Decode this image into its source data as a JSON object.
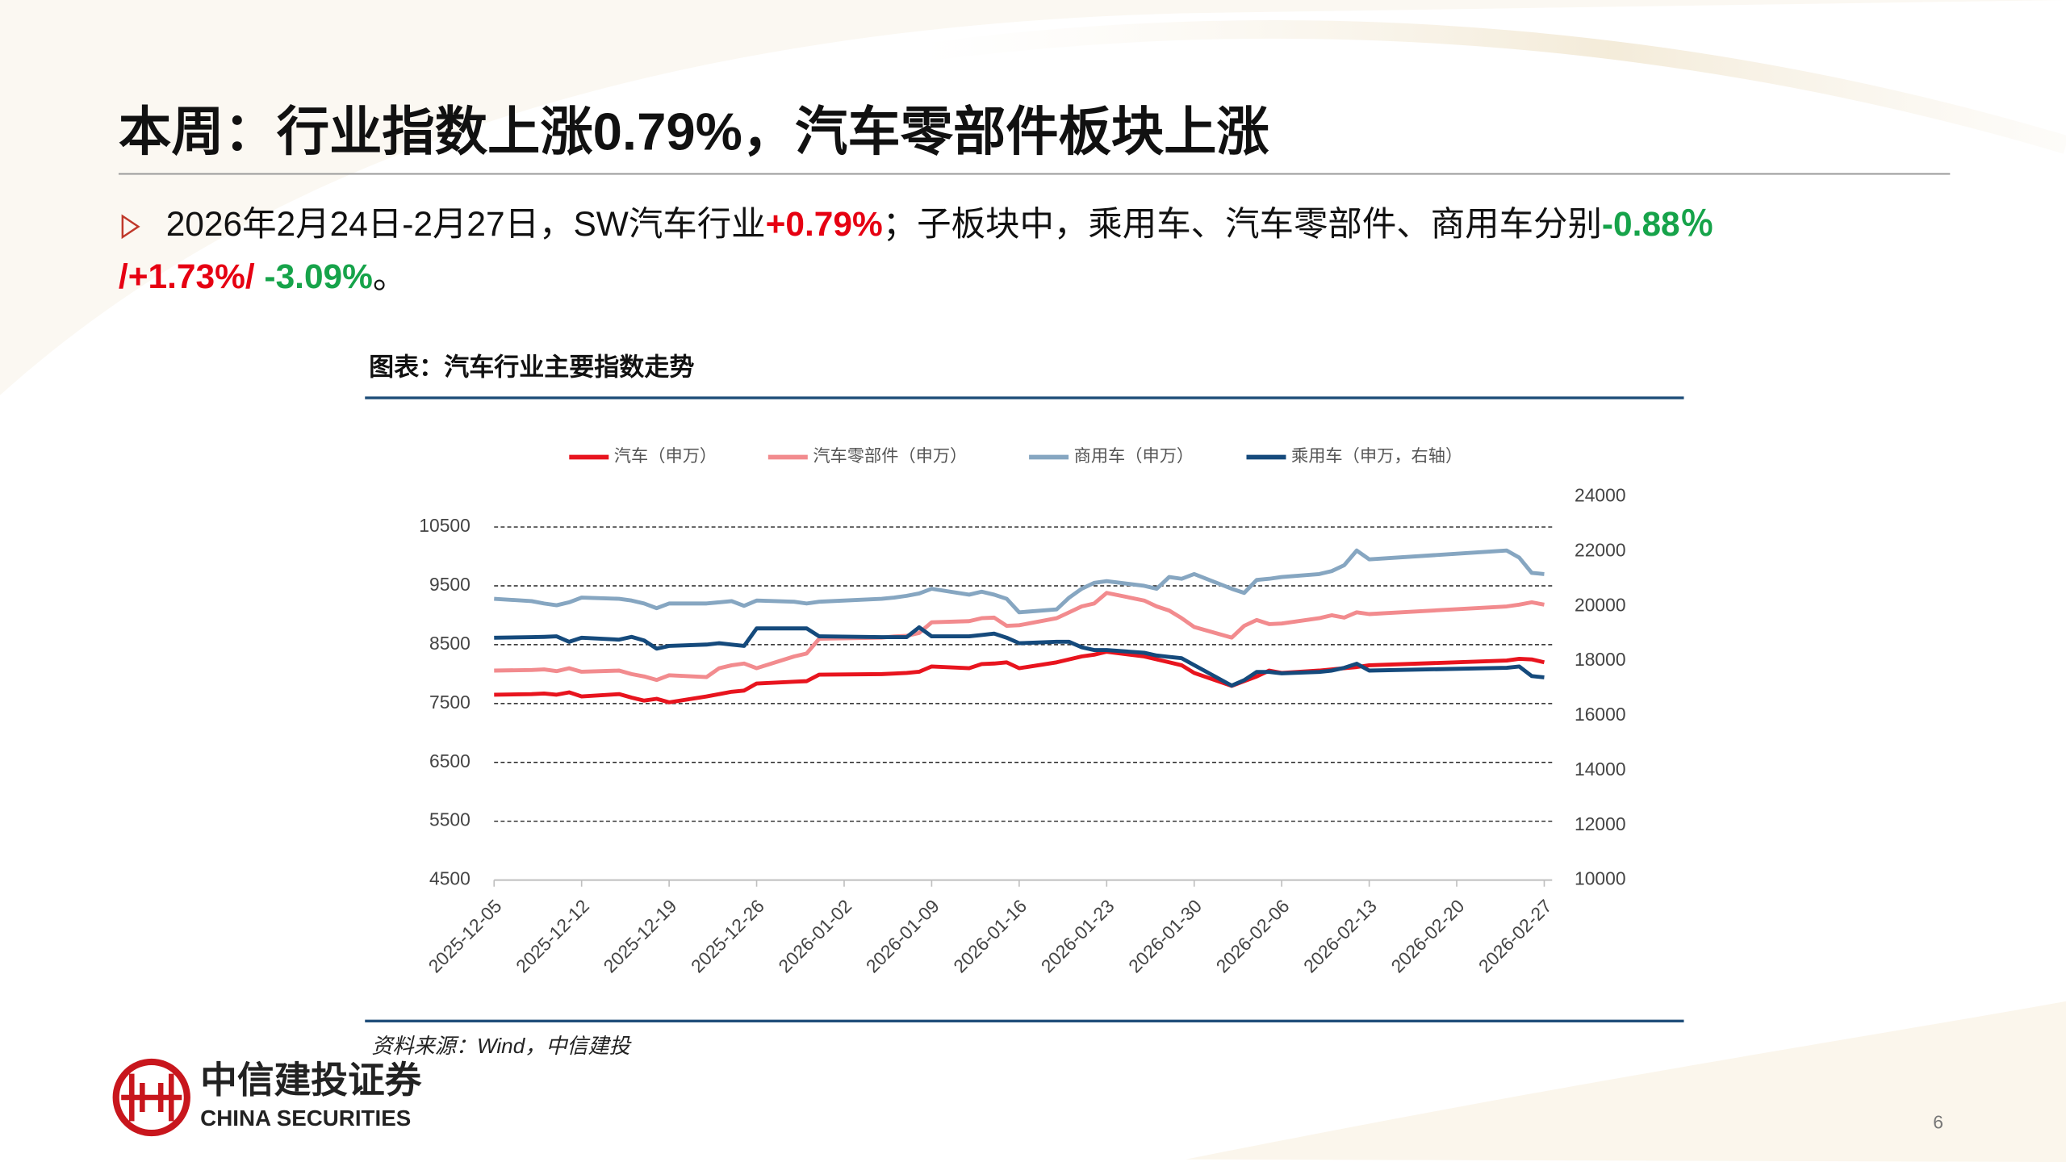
{
  "title": "本周：行业指数上涨0.79%，汽车零部件板块上涨",
  "bullet": {
    "lines": [
      [
        {
          "text": "2026年2月24日-2月27日，SW汽车行业",
          "color": "#111111"
        },
        {
          "text": "+0.79%",
          "color": "#e60012"
        },
        {
          "text": "；子板块中，乘用车、汽车零部件、商用车分别",
          "color": "#111111"
        },
        {
          "text": "-0.88％",
          "color": "#16a34a"
        }
      ],
      [
        {
          "text": "/+1.73%/",
          "color": "#e60012"
        },
        {
          "text": " -3.09%",
          "color": "#16a34a"
        },
        {
          "text": "。",
          "color": "#111111"
        }
      ]
    ]
  },
  "caption": "图表：汽车行业主要指数走势",
  "source": "资料来源：Wind，中信建投",
  "logo": {
    "name": "中信建投证券",
    "english": "CHINA SECURITIES"
  },
  "page_number": "6",
  "chart_data": {
    "type": "line",
    "x": [
      "2025-12-05",
      "2025-12-08",
      "2025-12-09",
      "2025-12-10",
      "2025-12-11",
      "2025-12-12",
      "2025-12-15",
      "2025-12-16",
      "2025-12-17",
      "2025-12-18",
      "2025-12-19",
      "2025-12-22",
      "2025-12-23",
      "2025-12-24",
      "2025-12-25",
      "2025-12-26",
      "2025-12-29",
      "2025-12-30",
      "2025-12-31",
      "2026-01-05",
      "2026-01-06",
      "2026-01-07",
      "2026-01-08",
      "2026-01-09",
      "2026-01-12",
      "2026-01-13",
      "2026-01-14",
      "2026-01-15",
      "2026-01-16",
      "2026-01-19",
      "2026-01-20",
      "2026-01-21",
      "2026-01-22",
      "2026-01-23",
      "2026-01-26",
      "2026-01-27",
      "2026-01-28",
      "2026-01-29",
      "2026-01-30",
      "2026-02-02",
      "2026-02-03",
      "2026-02-04",
      "2026-02-05",
      "2026-02-06",
      "2026-02-09",
      "2026-02-10",
      "2026-02-11",
      "2026-02-12",
      "2026-02-13",
      "2026-02-24",
      "2026-02-25",
      "2026-02-26",
      "2026-02-27"
    ],
    "series": [
      {
        "name": "汽车（申万）",
        "color": "#e8141e",
        "axis": "y",
        "values": [
          7650,
          7660,
          7670,
          7650,
          7690,
          7620,
          7660,
          7600,
          7550,
          7580,
          7520,
          7620,
          7660,
          7700,
          7720,
          7840,
          7870,
          7880,
          7990,
          8000,
          8010,
          8020,
          8040,
          8130,
          8100,
          8170,
          8180,
          8200,
          8100,
          8200,
          8250,
          8300,
          8330,
          8380,
          8300,
          8250,
          8200,
          8150,
          8020,
          7800,
          7880,
          7960,
          8060,
          8020,
          8060,
          8080,
          8100,
          8120,
          8150,
          8230,
          8260,
          8250,
          8200
        ]
      },
      {
        "name": "汽车零部件（申万）",
        "color": "#f28b8e",
        "axis": "y",
        "values": [
          8060,
          8070,
          8080,
          8050,
          8100,
          8040,
          8060,
          8000,
          7960,
          7900,
          7980,
          7950,
          8100,
          8150,
          8180,
          8100,
          8300,
          8350,
          8600,
          8620,
          8640,
          8650,
          8700,
          8880,
          8900,
          8950,
          8960,
          8820,
          8830,
          8950,
          9050,
          9150,
          9200,
          9380,
          9250,
          9150,
          9080,
          8950,
          8800,
          8620,
          8820,
          8920,
          8850,
          8860,
          8950,
          9000,
          8960,
          9050,
          9020,
          9150,
          9180,
          9220,
          9180
        ]
      },
      {
        "name": "商用车（申万）",
        "color": "#86a6c1",
        "axis": "y",
        "values": [
          9280,
          9240,
          9200,
          9170,
          9220,
          9300,
          9280,
          9250,
          9200,
          9120,
          9200,
          9200,
          9220,
          9240,
          9160,
          9250,
          9230,
          9200,
          9230,
          9280,
          9300,
          9330,
          9370,
          9450,
          9350,
          9400,
          9350,
          9280,
          9050,
          9100,
          9300,
          9450,
          9550,
          9580,
          9500,
          9450,
          9650,
          9620,
          9700,
          9450,
          9380,
          9600,
          9620,
          9650,
          9700,
          9750,
          9850,
          10100,
          9950,
          10100,
          9980,
          9720,
          9700
        ]
      },
      {
        "name": "乘用车（申万，右轴）",
        "color": "#154a7c",
        "axis": "y2",
        "values": [
          18850,
          18870,
          18880,
          18900,
          18700,
          18850,
          18780,
          18880,
          18750,
          18450,
          18550,
          18600,
          18650,
          18600,
          18550,
          19190,
          19190,
          19190,
          18900,
          18870,
          18870,
          18870,
          19230,
          18900,
          18900,
          18950,
          19000,
          18850,
          18650,
          18700,
          18700,
          18500,
          18400,
          18400,
          18300,
          18200,
          18150,
          18100,
          17850,
          17100,
          17300,
          17600,
          17600,
          17550,
          17600,
          17650,
          17750,
          17900,
          17650,
          17750,
          17800,
          17450,
          17400
        ]
      }
    ],
    "xlim": [
      "2025-12-05",
      "2026-02-27"
    ],
    "xticks": [
      "2025-12-05",
      "2025-12-12",
      "2025-12-19",
      "2025-12-26",
      "2026-01-02",
      "2026-01-09",
      "2026-01-16",
      "2026-01-23",
      "2026-01-30",
      "2026-02-06",
      "2026-02-13",
      "2026-02-20",
      "2026-02-27"
    ],
    "ylim": [
      4500,
      10500
    ],
    "yticks": [
      4500,
      5500,
      6500,
      7500,
      8500,
      9500,
      10500
    ],
    "y2lim": [
      10000,
      24000
    ],
    "y2ticks": [
      10000,
      12000,
      14000,
      16000,
      18000,
      20000,
      22000,
      24000
    ],
    "grid": true
  }
}
